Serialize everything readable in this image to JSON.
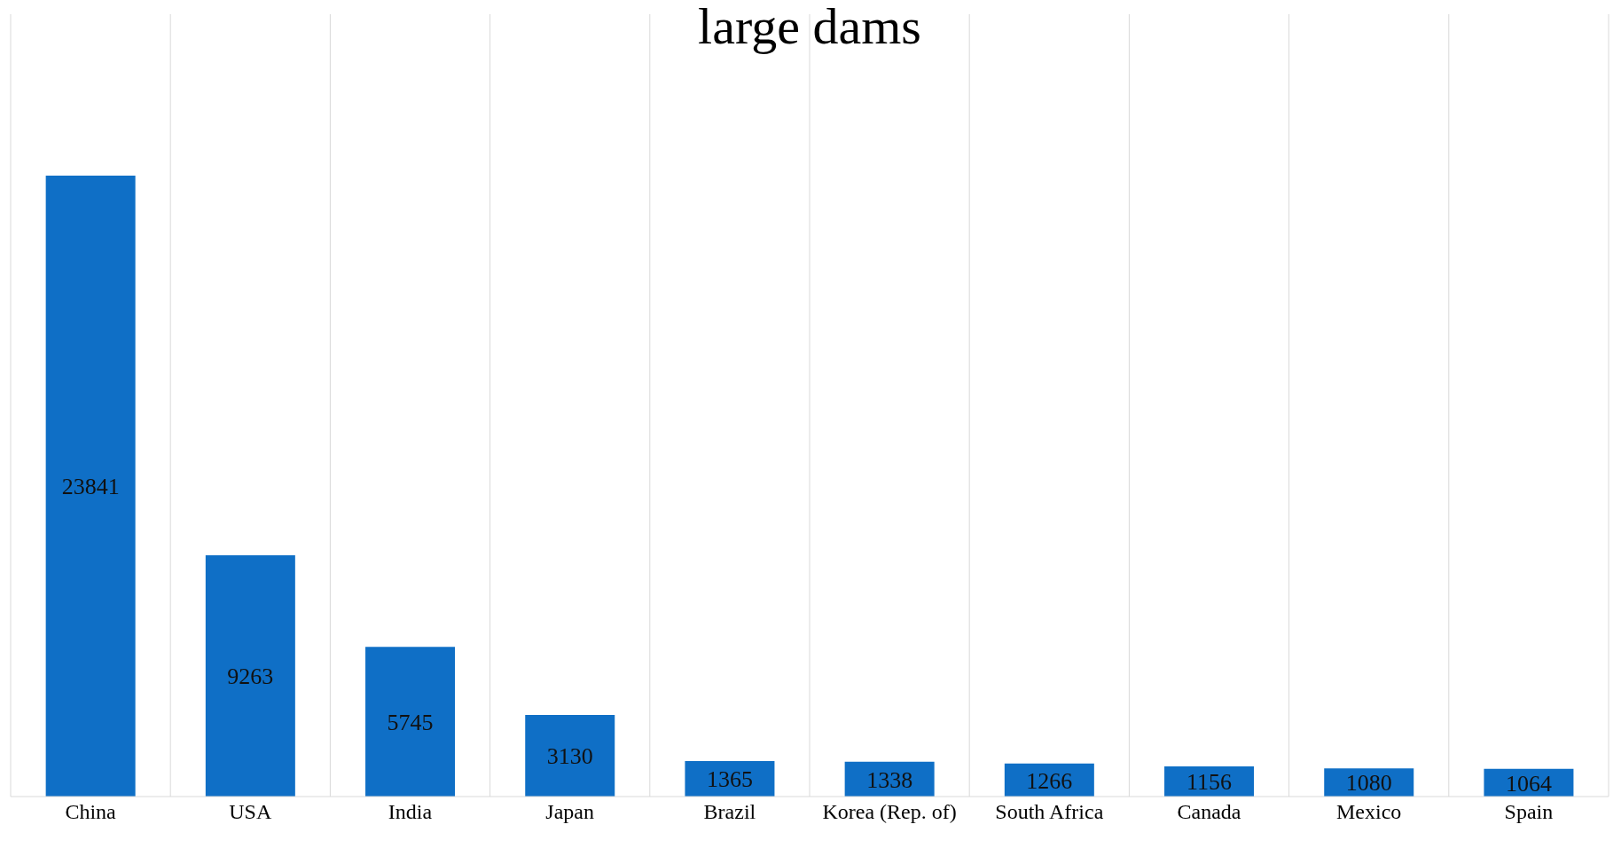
{
  "chart_data": {
    "type": "bar",
    "title": "large dams",
    "categories": [
      "China",
      "USA",
      "India",
      "Japan",
      "Brazil",
      "Korea (Rep. of)",
      "South Africa",
      "Canada",
      "Mexico",
      "Spain"
    ],
    "values": [
      23841,
      9263,
      5745,
      3130,
      1365,
      1338,
      1266,
      1156,
      1080,
      1064
    ],
    "color": "#0f6fc6",
    "data_labels": true,
    "grid": "x"
  }
}
